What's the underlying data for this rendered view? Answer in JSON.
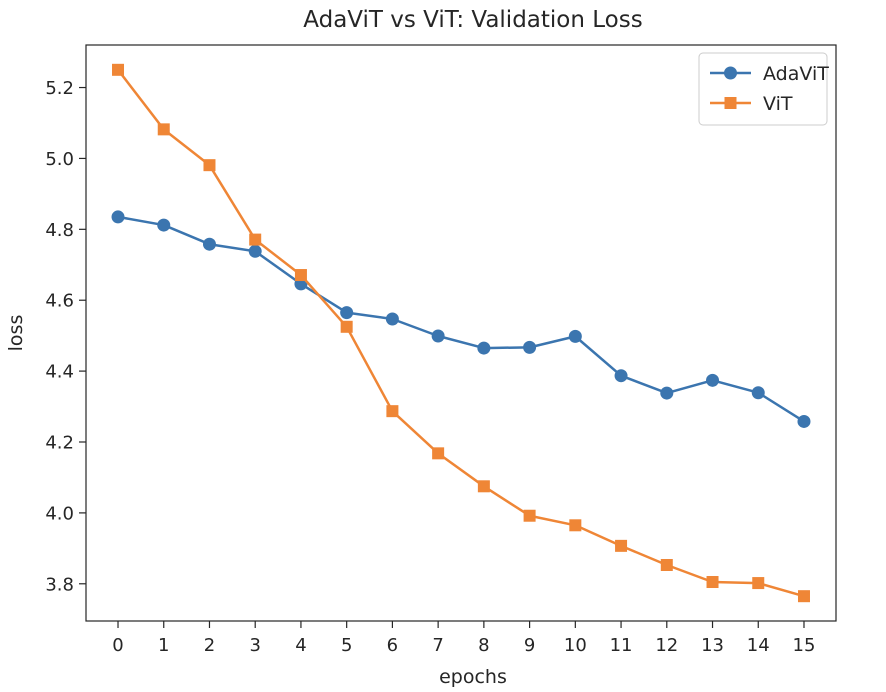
{
  "chart_data": {
    "type": "line",
    "title": "AdaViT vs ViT: Validation Loss",
    "xlabel": "epochs",
    "ylabel": "loss",
    "x": [
      0,
      1,
      2,
      3,
      4,
      5,
      6,
      7,
      8,
      9,
      10,
      11,
      12,
      13,
      14,
      15
    ],
    "xlim": [
      -0.7,
      15.7
    ],
    "ylim": [
      3.695,
      5.32
    ],
    "yticks": [
      3.8,
      4.0,
      4.2,
      4.4,
      4.6,
      4.8,
      5.0,
      5.2
    ],
    "ytick_labels": [
      "3.8",
      "4.0",
      "4.2",
      "4.4",
      "4.6",
      "4.8",
      "5.0",
      "5.2"
    ],
    "xtick_labels": [
      "0",
      "1",
      "2",
      "3",
      "4",
      "5",
      "6",
      "7",
      "8",
      "9",
      "10",
      "11",
      "12",
      "13",
      "14",
      "15"
    ],
    "grid": false,
    "legend_position": "top-right",
    "series": [
      {
        "name": "AdaViT",
        "color": "#3b75af",
        "marker": "circle",
        "values": [
          4.835,
          4.812,
          4.758,
          4.738,
          4.646,
          4.565,
          4.547,
          4.499,
          4.465,
          4.467,
          4.498,
          4.387,
          4.338,
          4.374,
          4.339,
          4.258
        ]
      },
      {
        "name": "ViT",
        "color": "#ef8636",
        "marker": "square",
        "values": [
          5.25,
          5.082,
          4.981,
          4.771,
          4.671,
          4.525,
          4.287,
          4.168,
          4.075,
          3.992,
          3.965,
          3.907,
          3.853,
          3.805,
          3.802,
          3.765
        ]
      }
    ]
  }
}
